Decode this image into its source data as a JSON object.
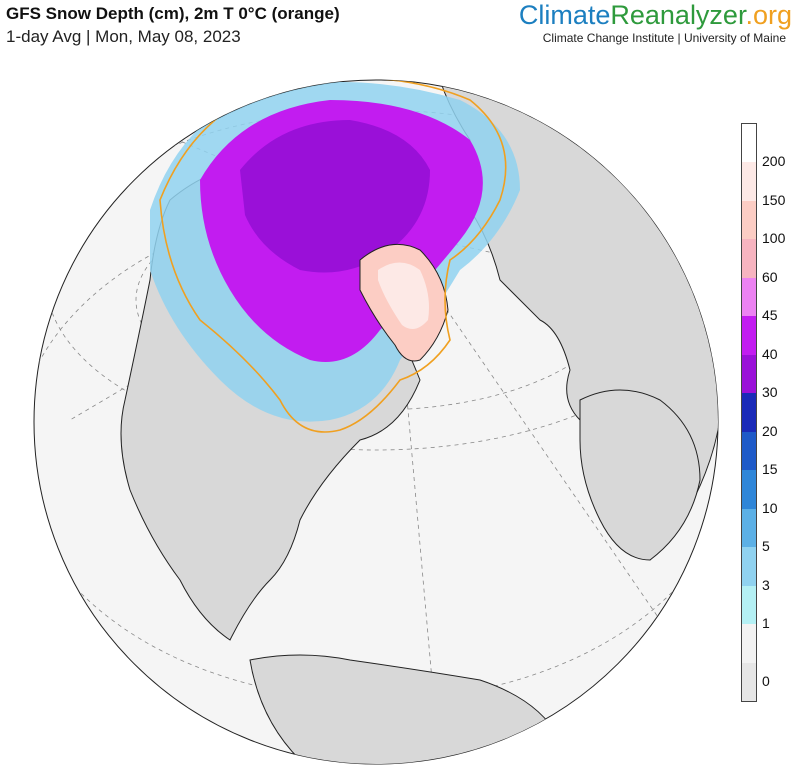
{
  "header": {
    "title": "GFS Snow Depth (cm), 2m T 0°C (orange)",
    "subtitle": "1-day Avg | Mon, May 08, 2023"
  },
  "brand": {
    "part1": "Climate",
    "part2": "Reanalyzer",
    "part3": ".org",
    "affiliation": "Climate Change Institute | University of Maine"
  },
  "legend": {
    "labels": [
      "200",
      "150",
      "100",
      "60",
      "45",
      "40",
      "30",
      "20",
      "15",
      "10",
      "5",
      "3",
      "1",
      "0"
    ],
    "colors": [
      "#ffffff",
      "#fde9e6",
      "#fccdc4",
      "#f7b4c0",
      "#ec82f2",
      "#c21cf0",
      "#9a10d8",
      "#1a2ab8",
      "#1e5ac8",
      "#2f86d8",
      "#5cb0e6",
      "#90d2f0",
      "#b4f0f4",
      "#f2f2f2",
      "#e6e6e6"
    ]
  },
  "map_colors": {
    "ocean": "#f5f5f5",
    "land": "#d8d8d8",
    "deep_snow": "#9a10d8",
    "heavy_snow": "#c21cf0",
    "greenland": "#fccdc4",
    "light_snow": "#90d2f0",
    "freeze_line": "#f0a020"
  }
}
